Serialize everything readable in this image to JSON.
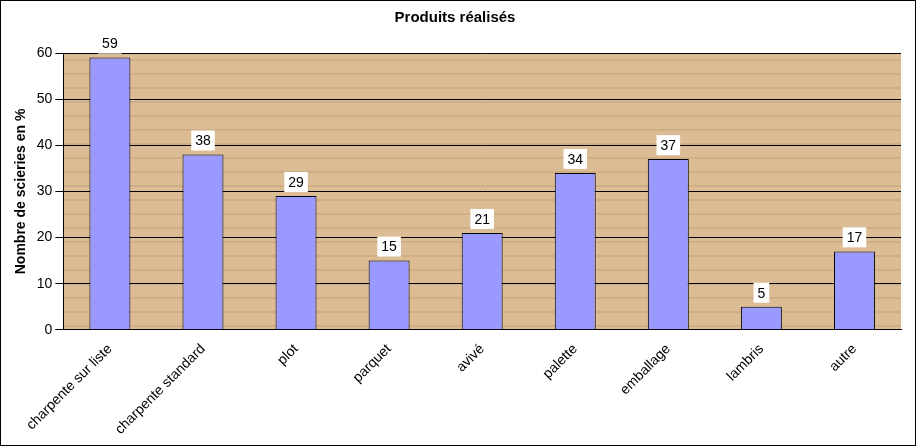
{
  "chart_data": {
    "type": "bar",
    "title": "Produits réalisés",
    "y_label": "Nombre de scieries en %",
    "categories": [
      "charpente sur liste",
      "charpente standard",
      "plot",
      "parquet",
      "avivé",
      "palette",
      "emballage",
      "lambris",
      "autre"
    ],
    "values": [
      59,
      38,
      29,
      15,
      21,
      34,
      37,
      5,
      17
    ],
    "color": "#9999ff",
    "ylim": [
      0,
      60
    ],
    "yticks": [
      0,
      10,
      20,
      30,
      40,
      50,
      60
    ],
    "grid": true,
    "data_labels": true
  }
}
